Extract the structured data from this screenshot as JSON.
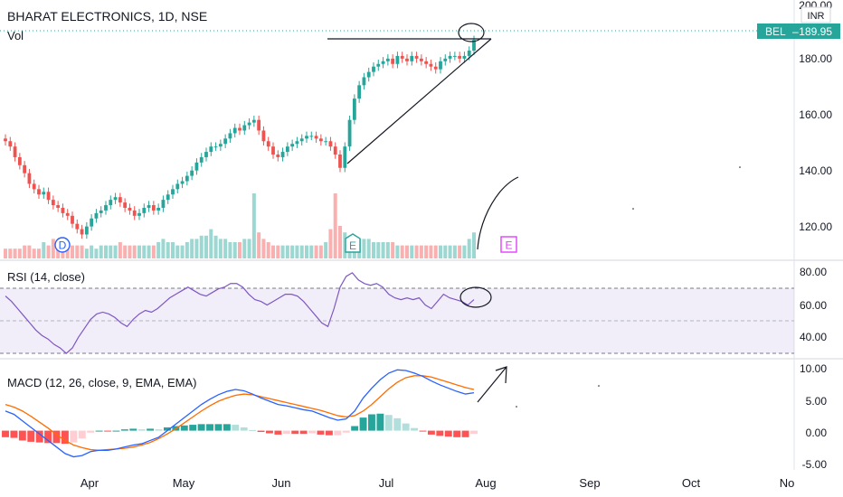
{
  "header": {
    "title": "BHARAT ELECTRONICS, 1D, NSE",
    "volume_label": "Vol",
    "currency": "INR"
  },
  "price_tag": {
    "symbol": "BEL",
    "value": "189.95"
  },
  "price_axis_ticks": [
    "200.00",
    "180.00",
    "160.00",
    "140.00",
    "120.00"
  ],
  "rsi_panel": {
    "title": "RSI (14, close)",
    "ticks": [
      "80.00",
      "60.00",
      "40.00"
    ]
  },
  "macd_panel": {
    "title": "MACD (12, 26, close, 9, EMA, EMA)",
    "ticks": [
      "10.00",
      "5.00",
      "0.00",
      "-5.00"
    ]
  },
  "time_axis": [
    "Apr",
    "May",
    "Jun",
    "Jul",
    "Aug",
    "Sep",
    "Oct",
    "No"
  ],
  "event_markers": [
    {
      "label": "D",
      "kind": "dividend"
    },
    {
      "label": "E",
      "kind": "earnings"
    },
    {
      "label": "E",
      "kind": "earnings-upcoming"
    }
  ],
  "colors": {
    "up": "#26a69a",
    "down": "#ef5350",
    "rsi_line": "#7e57c2",
    "macd_line": "#2962ff",
    "signal_line": "#ff6d00",
    "price_tag": "#26a69a"
  },
  "chart_data": [
    {
      "type": "candlestick",
      "title": "BHARAT ELECTRONICS, 1D, NSE",
      "ylim": [
        108,
        205
      ],
      "y_scale": "linear",
      "ohlc_close_approx": [
        152,
        150,
        146,
        143,
        140,
        136,
        134,
        132,
        133,
        130,
        128,
        127,
        125,
        124,
        121,
        119,
        117,
        120,
        123,
        125,
        126,
        128,
        130,
        131,
        129,
        127,
        126,
        124,
        125,
        127,
        128,
        126,
        127,
        130,
        132,
        134,
        136,
        137,
        139,
        141,
        144,
        146,
        148,
        150,
        150,
        151,
        153,
        155,
        157,
        156,
        158,
        159,
        160,
        156,
        152,
        150,
        147,
        146,
        148,
        150,
        151,
        152,
        153,
        154,
        154,
        153,
        152,
        152,
        150,
        147,
        142,
        150,
        160,
        168,
        173,
        176,
        178,
        180,
        181,
        182,
        183,
        181,
        184,
        183,
        182,
        184,
        183,
        182,
        181,
        180,
        179,
        182,
        183,
        184,
        184,
        183,
        184,
        186,
        190
      ],
      "last_close": 189.95
    },
    {
      "type": "bar",
      "title": "Vol",
      "values_relative": [
        3,
        3,
        3,
        3,
        4,
        4,
        3,
        3,
        5,
        4,
        6,
        4,
        5,
        4,
        4,
        4,
        4,
        3,
        4,
        3,
        4,
        4,
        4,
        4,
        5,
        4,
        4,
        4,
        4,
        4,
        4,
        4,
        5,
        6,
        5,
        5,
        4,
        4,
        5,
        6,
        6,
        7,
        7,
        9,
        7,
        6,
        6,
        5,
        5,
        5,
        6,
        6,
        20,
        8,
        6,
        5,
        4,
        4,
        4,
        4,
        4,
        4,
        4,
        4,
        4,
        4,
        4,
        5,
        9,
        20,
        10,
        8,
        7,
        7,
        6,
        6,
        6,
        5,
        5,
        5,
        5,
        5,
        4,
        4,
        4,
        4,
        4,
        4,
        4,
        4,
        4,
        4,
        4,
        4,
        4,
        4,
        4,
        6,
        8
      ]
    },
    {
      "type": "line",
      "title": "RSI (14, close)",
      "ylim": [
        30,
        85
      ],
      "values": [
        65,
        62,
        58,
        54,
        50,
        46,
        43,
        41,
        38,
        36,
        33,
        36,
        42,
        47,
        52,
        55,
        56,
        55,
        53,
        50,
        48,
        52,
        55,
        57,
        56,
        58,
        61,
        64,
        66,
        68,
        70,
        68,
        66,
        65,
        67,
        69,
        70,
        72,
        72,
        70,
        66,
        63,
        62,
        60,
        62,
        64,
        66,
        66,
        65,
        62,
        58,
        54,
        50,
        48,
        58,
        70,
        76,
        78,
        74,
        72,
        71,
        72,
        70,
        66,
        64,
        63,
        64,
        63,
        64,
        60,
        58,
        62,
        66,
        64,
        63,
        62,
        60,
        63
      ]
    },
    {
      "type": "line",
      "title": "MACD (12, 26, close, 9, EMA, EMA)",
      "ylim": [
        -6,
        11
      ],
      "series": [
        {
          "name": "MACD",
          "values": [
            3,
            2.5,
            1.5,
            0.5,
            -0.5,
            -1.5,
            -2.5,
            -3.5,
            -4,
            -3.8,
            -3.2,
            -3,
            -3,
            -2.8,
            -2.5,
            -2.2,
            -2,
            -1.5,
            -1,
            0,
            1,
            2,
            3,
            4,
            4.8,
            5.5,
            6,
            6.3,
            6.1,
            5.6,
            5,
            4.5,
            4,
            3.8,
            3.5,
            3.2,
            3,
            2.5,
            2,
            1.6,
            1.8,
            3,
            5,
            6.5,
            7.8,
            8.8,
            9.3,
            9.2,
            8.8,
            8.3,
            7.6,
            7,
            6.5,
            6,
            5.6,
            5.8
          ]
        },
        {
          "name": "Signal",
          "values": [
            4,
            3.6,
            3,
            2.2,
            1.3,
            0.4,
            -0.6,
            -1.5,
            -2.2,
            -2.6,
            -2.9,
            -3,
            -2.9,
            -2.8,
            -2.7,
            -2.5,
            -2.2,
            -1.8,
            -1.2,
            -0.5,
            0.3,
            1.2,
            2.1,
            3,
            3.8,
            4.5,
            5,
            5.4,
            5.6,
            5.5,
            5.2,
            4.9,
            4.6,
            4.3,
            4,
            3.7,
            3.4,
            3.1,
            2.7,
            2.3,
            2.1,
            2.3,
            3,
            4,
            5.2,
            6.4,
            7.4,
            8.1,
            8.4,
            8.4,
            8.2,
            7.8,
            7.4,
            7,
            6.6,
            6.3
          ]
        }
      ]
    }
  ]
}
